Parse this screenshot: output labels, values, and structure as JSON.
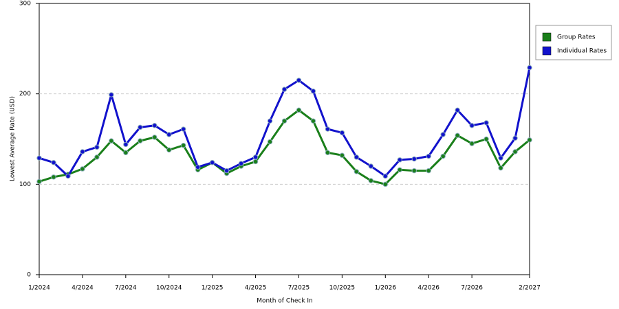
{
  "chart_data": {
    "type": "line",
    "x_label": "Month of Check In",
    "y_label": "Lowest Average Rate (USD)",
    "categories": [
      "1/2024",
      null,
      null,
      "4/2024",
      null,
      null,
      "7/2024",
      null,
      null,
      "10/2024",
      null,
      null,
      "1/2025",
      null,
      null,
      "4/2025",
      null,
      null,
      "7/2025",
      null,
      null,
      "10/2025",
      null,
      null,
      "1/2026",
      null,
      null,
      "4/2026",
      null,
      null,
      "7/2026",
      null,
      null,
      null,
      "2/2027"
    ],
    "series": [
      {
        "name": "Group Rates",
        "color": "#1a7f1a",
        "values": [
          103,
          108,
          111,
          117,
          130,
          148,
          135,
          148,
          152,
          138,
          143,
          116,
          124,
          112,
          120,
          125,
          147,
          170,
          182,
          170,
          135,
          132,
          114,
          104,
          100,
          116,
          115,
          115,
          131,
          154,
          145,
          150,
          118,
          136,
          149
        ]
      },
      {
        "name": "Individual Rates",
        "color": "#1212cc",
        "values": [
          129,
          124,
          109,
          136,
          141,
          199,
          144,
          163,
          165,
          155,
          161,
          119,
          124,
          115,
          123,
          130,
          170,
          205,
          215,
          203,
          161,
          157,
          130,
          120,
          109,
          127,
          128,
          131,
          155,
          182,
          165,
          168,
          129,
          151,
          229
        ]
      }
    ],
    "ylim": [
      0,
      300
    ],
    "yticks": [
      0,
      100,
      200,
      300
    ],
    "grid": true,
    "legend": "right"
  }
}
